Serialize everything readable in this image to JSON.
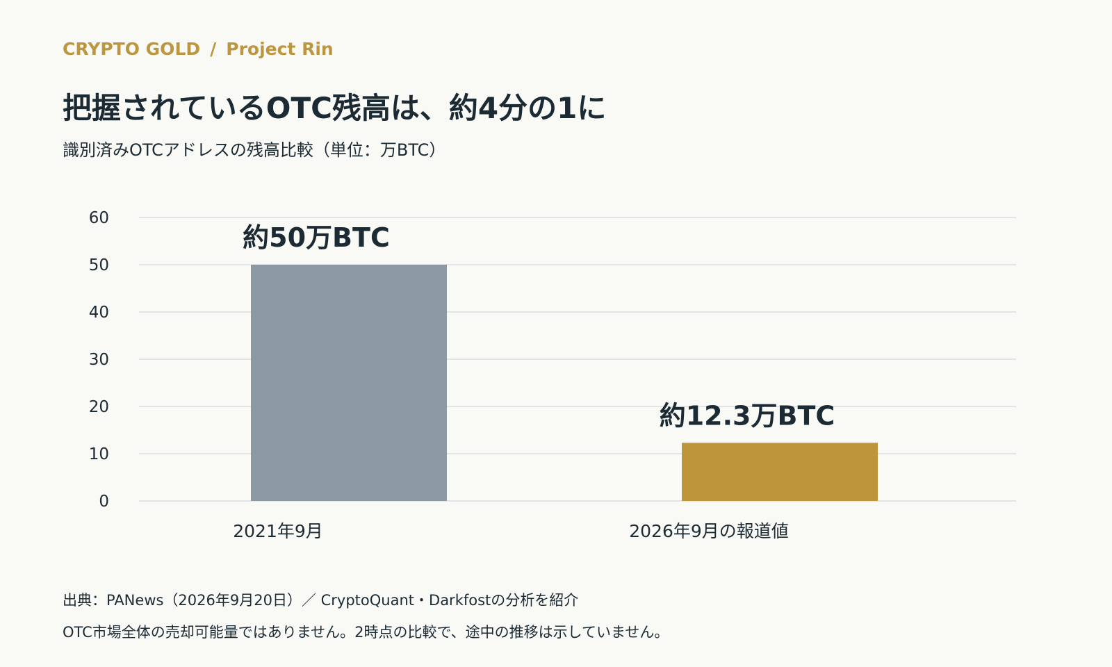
{
  "header": {
    "brand": "CRYPTO GOLD",
    "separator": "/",
    "project": "Project Rin",
    "title": "把握されているOTC残高は、約4分の1に",
    "subtitle": "識別済みOTCアドレスの残高比較（単位：万BTC）"
  },
  "chart_data": {
    "type": "bar",
    "categories": [
      "2021年9月",
      "2026年9月の報道値"
    ],
    "values": [
      50,
      12.3
    ],
    "data_labels": [
      "約50万BTC",
      "約12.3万BTC"
    ],
    "bar_colors": [
      "#8b99a2",
      "#bd963c"
    ],
    "ylim": [
      0,
      60
    ],
    "yticks": [
      0,
      10,
      20,
      30,
      40,
      50,
      60
    ],
    "grid": true,
    "xlabel": "",
    "ylabel": ""
  },
  "footer": {
    "source": "出典：PANews（2026年9月20日）／ CryptoQuant・Darkfostの分析を紹介",
    "note": "OTC市場全体の売却可能量ではありません。2時点の比較で、途中の推移は示していません。"
  }
}
